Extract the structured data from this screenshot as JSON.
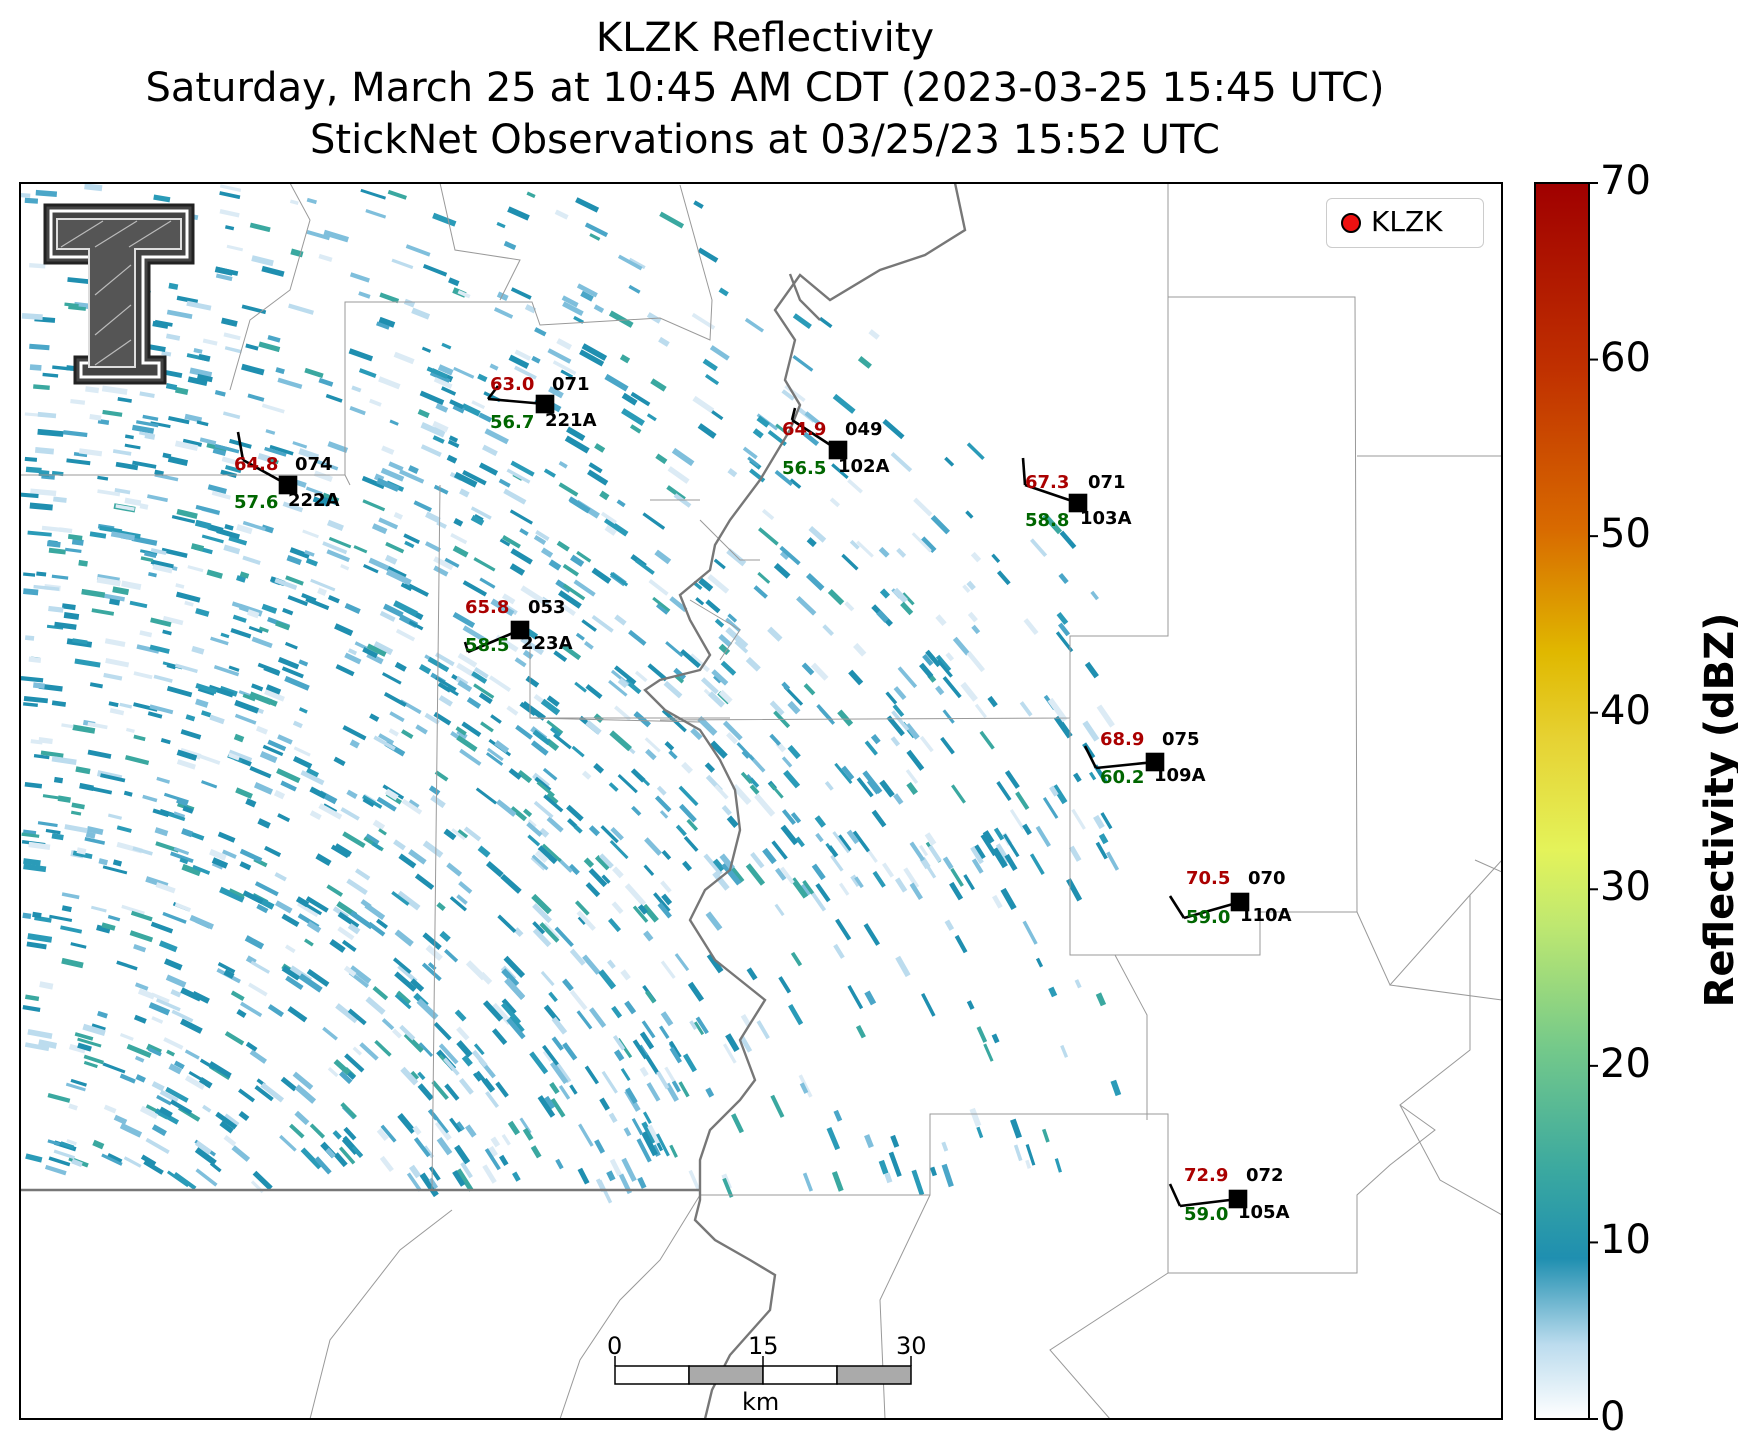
{
  "titles": {
    "line1": "KLZK Reflectivity",
    "line2": "Saturday, March 25 at 10:45 AM CDT (2023-03-25 15:45 UTC)",
    "line3": "StickNet Observations at 03/25/23 15:52 UTC"
  },
  "colorbar": {
    "label": "Reflectivity (dBZ)",
    "ticks": [
      "0",
      "10",
      "20",
      "30",
      "40",
      "50",
      "60",
      "70"
    ],
    "colors": [
      "#ffffff",
      "#1f8fb0",
      "#74c98a",
      "#e4f35a",
      "#e0b800",
      "#d86a00",
      "#b81b00",
      "#a00000"
    ]
  },
  "legend": {
    "label": "KLZK",
    "marker_color": "#ee1111"
  },
  "scale_bar": {
    "labels": [
      "0",
      "15",
      "30"
    ],
    "unit": "km"
  },
  "logo": {
    "text": "T",
    "name": "Texas Tech double-T logo"
  },
  "stations": [
    {
      "id": "222A",
      "temp": "64.8",
      "dew": "57.6",
      "dir": "074"
    },
    {
      "id": "221A",
      "temp": "63.0",
      "dew": "56.7",
      "dir": "071"
    },
    {
      "id": "102A",
      "temp": "64.9",
      "dew": "56.5",
      "dir": "049"
    },
    {
      "id": "103A",
      "temp": "67.3",
      "dew": "58.8",
      "dir": "071"
    },
    {
      "id": "223A",
      "temp": "65.8",
      "dew": "58.5",
      "dir": "053"
    },
    {
      "id": "109A",
      "temp": "68.9",
      "dew": "60.2",
      "dir": "075"
    },
    {
      "id": "110A",
      "temp": "70.5",
      "dew": "59.0",
      "dir": "070"
    },
    {
      "id": "105A",
      "temp": "72.9",
      "dew": "59.0",
      "dir": "072"
    }
  ]
}
